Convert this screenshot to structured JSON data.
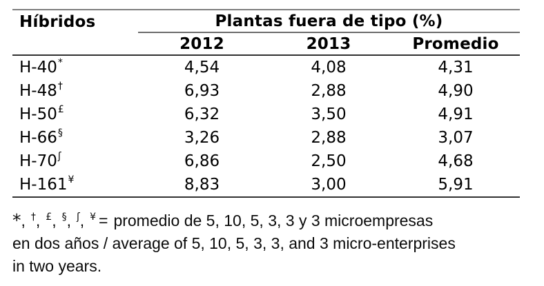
{
  "table": {
    "corner_header": "Híbridos",
    "group_header": "Plantas fuera de tipo (%)",
    "column_headers": [
      "2012",
      "2013",
      "Promedio"
    ],
    "rows": [
      {
        "label": "H-40",
        "symbol": "*",
        "y2012": "4,54",
        "y2013": "4,08",
        "promedio": "4,31"
      },
      {
        "label": "H-48",
        "symbol": "†",
        "y2012": "6,93",
        "y2013": "2,88",
        "promedio": "4,90"
      },
      {
        "label": "H-50",
        "symbol": "£",
        "y2012": "6,32",
        "y2013": "3,50",
        "promedio": "4,91"
      },
      {
        "label": "H-66",
        "symbol": "§",
        "y2012": "3,26",
        "y2013": "2,88",
        "promedio": "3,07"
      },
      {
        "label": "H-70",
        "symbol": "ʃ",
        "y2012": "6,86",
        "y2013": "2,50",
        "promedio": "4,68"
      },
      {
        "label": "H-161",
        "symbol": "¥",
        "y2012": "8,83",
        "y2013": "3,00",
        "promedio": "5,91"
      }
    ]
  },
  "footnote": {
    "symbols": [
      "*",
      "†",
      "£",
      "§",
      "ʃ",
      "¥"
    ],
    "sep": ",",
    "equals": "=",
    "line1_text": "promedio de 5, 10, 5, 3, 3 y 3 microempresas",
    "line2": "en dos años / average of 5, 10, 5, 3, 3, and 3 micro-enterprises",
    "line3": "in two years."
  }
}
